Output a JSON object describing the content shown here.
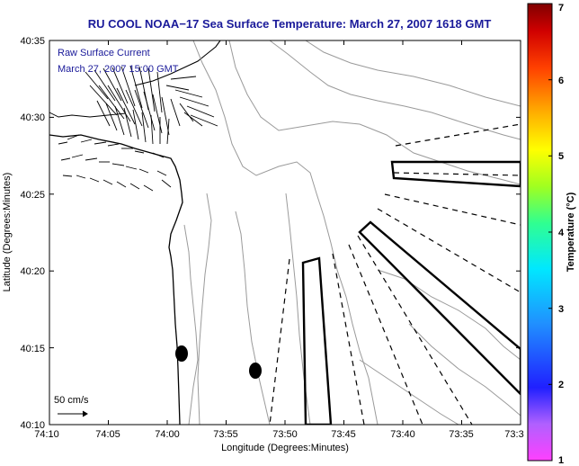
{
  "title": "RU COOL  NOAA−17  Sea Surface Temperature:  March 27, 2007 1618 GMT",
  "legend": {
    "line1": "Raw Surface Current",
    "line2": "March 27, 2007 15:00 GMT",
    "scale_label": "50 cm/s"
  },
  "axes": {
    "xlabel": "Longitude (Degrees:Minutes)",
    "ylabel": "Latitude (Degrees:Minutes)",
    "x_ticks": [
      "74:10",
      "74:05",
      "74:00",
      "73:55",
      "73:50",
      "73:45",
      "73:40",
      "73:35",
      "73:3"
    ],
    "y_ticks": [
      "40:35",
      "40:30",
      "40:25",
      "40:20",
      "40:15",
      "40:10"
    ]
  },
  "colorbar": {
    "label": "Temperature (°C)",
    "ticks": [
      "7",
      "6",
      "5",
      "4",
      "3",
      "2",
      "1"
    ],
    "range": [
      1,
      7
    ]
  },
  "colors": {
    "title": "#1a1a9a",
    "contour": "#9a9a9a",
    "frame": "#000000"
  }
}
